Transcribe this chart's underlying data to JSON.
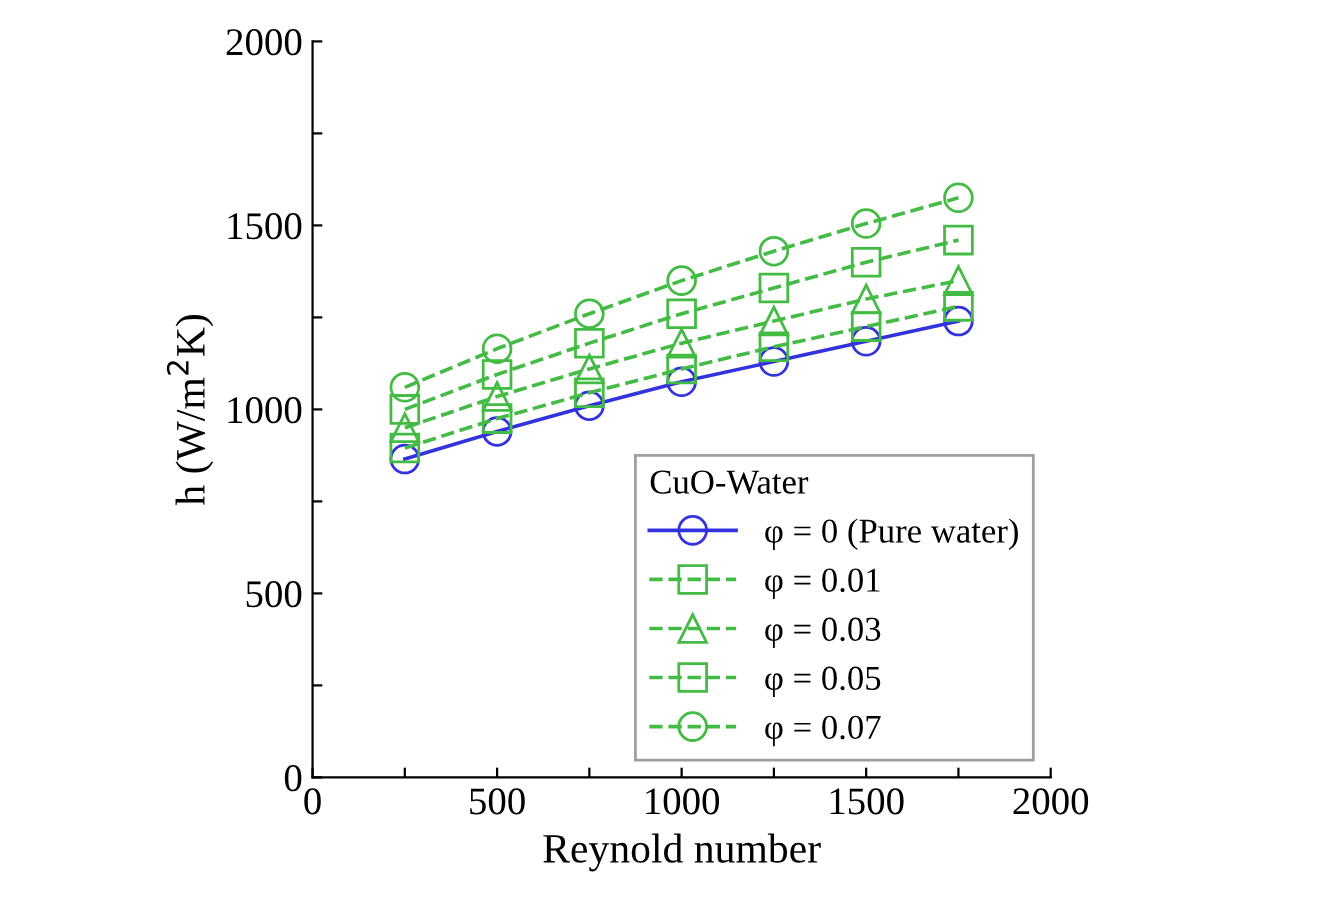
{
  "chart_data": {
    "type": "line",
    "xlabel": "Reynold number",
    "ylabel": "h (W/m$^{2}$K)",
    "legend_title": "CuO-Water",
    "legend": "bottom right",
    "grid": false,
    "x": [
      250,
      500,
      750,
      1000,
      1250,
      1500,
      1750
    ],
    "xlim": [
      0,
      2000
    ],
    "ylim": [
      0,
      2000
    ],
    "xticks": [
      0,
      {
        "value": 250,
        "label": null
      },
      500,
      {
        "value": 750,
        "label": null
      },
      1000,
      {
        "value": 1250,
        "label": null
      },
      1500,
      {
        "value": 1750,
        "label": null
      },
      2000
    ],
    "yticks": [
      0,
      {
        "value": 250,
        "label": null
      },
      500,
      {
        "value": 750,
        "label": null
      },
      1000,
      {
        "value": 1250,
        "label": null
      },
      1500,
      {
        "value": 1750,
        "label": null
      },
      2000
    ],
    "series": [
      {
        "name": "φ = 0 (Pure water)",
        "color": "#3333dd",
        "line_style": "solid",
        "marker": "circle",
        "values": [
          865,
          940,
          1010,
          1075,
          1130,
          1185,
          1240
        ]
      },
      {
        "name": "φ = 0.01",
        "color": "#44bb44",
        "line_style": "dashed",
        "marker": "square",
        "values": [
          895,
          975,
          1045,
          1110,
          1170,
          1225,
          1280
        ]
      },
      {
        "name": "φ = 0.03",
        "color": "#44bb44",
        "line_style": "dashed",
        "marker": "triangle",
        "values": [
          950,
          1035,
          1110,
          1180,
          1240,
          1300,
          1350
        ]
      },
      {
        "name": "φ = 0.05",
        "color": "#44bb44",
        "line_style": "dashed",
        "marker": "square",
        "values": [
          1000,
          1095,
          1180,
          1260,
          1330,
          1400,
          1460
        ]
      },
      {
        "name": "φ = 0.07",
        "color": "#44bb44",
        "line_style": "dashed",
        "marker": "circle",
        "values": [
          1060,
          1165,
          1260,
          1350,
          1430,
          1505,
          1575
        ]
      }
    ]
  }
}
